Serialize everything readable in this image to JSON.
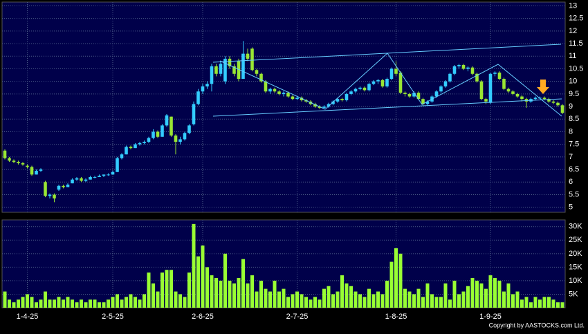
{
  "chart_data": {
    "type": "candlestick",
    "source": "Copyright by AASTOCKS.com Ltd.",
    "up_color": "#33ccff",
    "down_color": "#99e633",
    "volume_color": "#99ff33",
    "grid": true,
    "categories": [
      null,
      null,
      null,
      null,
      null,
      "1-4-25",
      null,
      null,
      null,
      null,
      null,
      null,
      null,
      null,
      null,
      null,
      null,
      null,
      null,
      null,
      null,
      null,
      null,
      null,
      "2-5-25",
      null,
      null,
      null,
      null,
      null,
      null,
      null,
      null,
      null,
      null,
      null,
      null,
      null,
      null,
      null,
      null,
      null,
      null,
      null,
      "2-6-25",
      null,
      null,
      null,
      null,
      null,
      null,
      null,
      null,
      null,
      null,
      null,
      null,
      null,
      null,
      null,
      null,
      null,
      null,
      null,
      null,
      "2-7-25",
      null,
      null,
      null,
      null,
      null,
      null,
      null,
      null,
      null,
      null,
      null,
      null,
      null,
      null,
      null,
      null,
      null,
      null,
      null,
      null,
      null,
      "1-8-25",
      null,
      null,
      null,
      null,
      null,
      null,
      null,
      null,
      null,
      null,
      null,
      null,
      null,
      null,
      null,
      null,
      null,
      null,
      null,
      null,
      "1-9-25",
      null,
      null,
      null,
      null,
      null,
      null,
      null,
      null,
      null,
      null,
      null,
      null,
      null,
      null,
      null,
      null
    ],
    "open": [
      7.25,
      6.95,
      6.85,
      6.8,
      6.75,
      6.65,
      6.6,
      6.3,
      6.45,
      6.0,
      5.45,
      5.5,
      5.7,
      5.85,
      5.8,
      5.95,
      6.1,
      6.15,
      6.05,
      6.1,
      6.2,
      6.2,
      6.25,
      6.3,
      6.3,
      6.4,
      6.95,
      7.1,
      7.4,
      7.35,
      7.5,
      7.55,
      7.6,
      7.75,
      8.0,
      7.8,
      8.25,
      8.6,
      7.85,
      7.6,
      7.7,
      7.95,
      8.3,
      9.1,
      9.6,
      9.8,
      9.9,
      10.6,
      10.3,
      10.0,
      10.9,
      10.6,
      10.8,
      10.1,
      11.1,
      11.3,
      10.45,
      10.3,
      10.0,
      9.6,
      9.7,
      9.6,
      9.5,
      9.55,
      9.4,
      9.3,
      9.35,
      9.25,
      9.2,
      9.1,
      9.0,
      8.95,
      9.0,
      9.1,
      9.2,
      9.3,
      9.25,
      9.5,
      9.6,
      9.7,
      9.75,
      9.65,
      9.9,
      10.0,
      10.05,
      9.8,
      10.1,
      10.5,
      10.35,
      9.55,
      9.5,
      9.4,
      9.55,
      9.3,
      9.1,
      9.2,
      9.4,
      9.6,
      9.8,
      10.0,
      10.3,
      10.6,
      10.65,
      10.5,
      10.55,
      10.3,
      10.0,
      9.3,
      9.15,
      10.3,
      10.35,
      10.1,
      9.7,
      9.6,
      9.5,
      9.4,
      9.3,
      9.2,
      9.3,
      9.35,
      9.35,
      9.3,
      9.2,
      9.15,
      9.05
    ],
    "high": [
      7.3,
      7.0,
      6.9,
      6.85,
      6.8,
      6.7,
      6.65,
      6.5,
      6.55,
      6.05,
      5.55,
      5.55,
      5.9,
      5.9,
      5.95,
      6.15,
      6.2,
      6.2,
      6.15,
      6.25,
      6.25,
      6.3,
      6.3,
      6.35,
      6.45,
      7.0,
      7.15,
      7.45,
      7.45,
      7.55,
      7.6,
      7.65,
      7.8,
      8.1,
      8.05,
      8.3,
      8.7,
      8.6,
      7.9,
      7.8,
      8.0,
      8.3,
      9.2,
      9.7,
      9.9,
      10.0,
      10.7,
      10.7,
      10.8,
      11.0,
      11.0,
      10.7,
      10.9,
      11.6,
      11.3,
      11.35,
      10.5,
      10.35,
      10.05,
      9.75,
      9.75,
      9.65,
      9.6,
      9.6,
      9.45,
      9.4,
      9.4,
      9.3,
      9.25,
      9.15,
      9.05,
      9.05,
      9.15,
      9.25,
      9.35,
      9.35,
      9.55,
      9.65,
      9.75,
      9.8,
      9.8,
      9.95,
      10.05,
      10.1,
      10.1,
      10.15,
      10.55,
      10.8,
      10.4,
      9.6,
      9.55,
      9.6,
      9.6,
      9.35,
      9.25,
      9.45,
      9.65,
      9.85,
      10.05,
      10.35,
      10.65,
      10.7,
      10.7,
      10.6,
      10.6,
      10.35,
      10.05,
      9.35,
      10.35,
      10.4,
      10.4,
      10.15,
      9.75,
      9.65,
      9.55,
      9.45,
      9.35,
      9.35,
      9.4,
      9.4,
      9.4,
      9.35,
      9.25,
      9.2,
      9.1
    ],
    "low": [
      6.9,
      6.8,
      6.75,
      6.7,
      6.65,
      6.55,
      6.25,
      6.3,
      6.4,
      5.4,
      5.35,
      5.2,
      5.65,
      5.75,
      5.8,
      5.95,
      6.05,
      6.0,
      6.0,
      6.1,
      6.15,
      6.2,
      6.2,
      6.25,
      6.3,
      6.4,
      6.9,
      7.1,
      7.3,
      7.35,
      7.45,
      7.5,
      7.55,
      7.7,
      7.75,
      7.8,
      8.2,
      7.8,
      7.1,
      7.5,
      7.65,
      7.9,
      8.25,
      9.05,
      9.5,
      9.7,
      9.6,
      10.2,
      10.2,
      9.9,
      10.5,
      10.2,
      10.0,
      10.1,
      10.8,
      10.4,
      10.2,
      9.95,
      9.55,
      9.5,
      9.55,
      9.45,
      9.4,
      9.35,
      9.25,
      9.25,
      9.2,
      9.15,
      9.05,
      8.95,
      8.9,
      8.9,
      8.95,
      9.05,
      9.15,
      9.2,
      9.2,
      9.45,
      9.55,
      9.65,
      9.6,
      9.6,
      9.85,
      9.9,
      9.75,
      9.75,
      10.05,
      10.2,
      9.5,
      9.4,
      9.35,
      9.35,
      9.25,
      9.05,
      9.05,
      9.15,
      9.35,
      9.55,
      9.75,
      9.95,
      10.25,
      10.5,
      10.45,
      10.4,
      10.25,
      9.95,
      9.25,
      9.1,
      9.1,
      10.2,
      10.05,
      9.65,
      9.55,
      9.45,
      9.35,
      9.2,
      8.95,
      9.15,
      9.25,
      9.3,
      9.25,
      9.15,
      9.1,
      9.0,
      8.7
    ],
    "close": [
      6.95,
      6.85,
      6.8,
      6.75,
      6.7,
      6.6,
      6.3,
      6.45,
      6.5,
      5.45,
      5.5,
      5.35,
      5.85,
      5.8,
      5.9,
      6.1,
      6.15,
      6.05,
      6.1,
      6.2,
      6.2,
      6.25,
      6.3,
      6.3,
      6.4,
      6.95,
      7.1,
      7.4,
      7.35,
      7.5,
      7.55,
      7.6,
      7.75,
      8.0,
      7.8,
      8.25,
      8.65,
      7.85,
      7.6,
      7.7,
      7.95,
      8.25,
      9.1,
      9.6,
      9.8,
      9.9,
      10.6,
      10.3,
      10.7,
      10.9,
      10.6,
      10.3,
      10.1,
      11.1,
      10.9,
      10.45,
      10.3,
      10.0,
      9.6,
      9.7,
      9.6,
      9.5,
      9.55,
      9.4,
      9.3,
      9.35,
      9.25,
      9.2,
      9.1,
      9.0,
      8.95,
      9.0,
      9.1,
      9.2,
      9.3,
      9.25,
      9.5,
      9.6,
      9.7,
      9.75,
      9.65,
      9.9,
      10.0,
      10.05,
      9.8,
      10.1,
      10.5,
      10.3,
      9.55,
      9.5,
      9.4,
      9.55,
      9.3,
      9.1,
      9.2,
      9.4,
      9.6,
      9.8,
      10.0,
      10.3,
      10.6,
      10.65,
      10.5,
      10.55,
      10.3,
      10.0,
      9.3,
      9.2,
      10.3,
      10.35,
      10.1,
      9.7,
      9.6,
      9.5,
      9.4,
      9.3,
      9.2,
      9.3,
      9.35,
      9.35,
      9.3,
      9.2,
      9.15,
      9.05,
      8.75
    ],
    "volume": [
      6000,
      3000,
      2000,
      3000,
      4000,
      5000,
      4000,
      2000,
      3000,
      6000,
      3000,
      3000,
      4000,
      3000,
      4000,
      3000,
      2000,
      3000,
      2000,
      3000,
      3000,
      2000,
      2000,
      3000,
      4000,
      5000,
      3000,
      4000,
      5000,
      4000,
      3000,
      5000,
      13000,
      9000,
      6000,
      13000,
      14000,
      14000,
      6000,
      5000,
      4000,
      13000,
      31000,
      19000,
      23000,
      15000,
      12000,
      11000,
      10000,
      20000,
      10000,
      9000,
      11000,
      18000,
      9000,
      12000,
      6000,
      10000,
      7000,
      6000,
      10000,
      6000,
      7000,
      4000,
      5000,
      6000,
      5000,
      4000,
      3000,
      4000,
      3000,
      7000,
      8000,
      5000,
      6000,
      12000,
      9000,
      8000,
      6000,
      5000,
      4000,
      7000,
      5000,
      6000,
      5000,
      10000,
      17000,
      22000,
      20000,
      7000,
      6000,
      5000,
      7000,
      4000,
      9000,
      5000,
      4000,
      4000,
      9000,
      3000,
      10000,
      5000,
      6000,
      8000,
      11000,
      10000,
      9000,
      7000,
      12000,
      11000,
      10000,
      6000,
      9000,
      5000,
      6000,
      3000,
      4000,
      2000,
      4000,
      3000,
      4000,
      4000,
      3000,
      2000,
      2000
    ],
    "ylim": [
      4.8,
      13.15
    ],
    "yticks": [
      5,
      5.5,
      6,
      6.5,
      7,
      7.5,
      8,
      8.5,
      9,
      9.5,
      10,
      10.5,
      11,
      11.5,
      12,
      12.5,
      13
    ],
    "volume_ylim": [
      0,
      32500
    ],
    "volume_yticks": [
      {
        "value": 5000,
        "label": "5K"
      },
      {
        "value": 10000,
        "label": "10K"
      },
      {
        "value": 15000,
        "label": "15K"
      },
      {
        "value": 20000,
        "label": "20K"
      },
      {
        "value": 25000,
        "label": "25K"
      },
      {
        "value": 30000,
        "label": "30K"
      }
    ]
  }
}
